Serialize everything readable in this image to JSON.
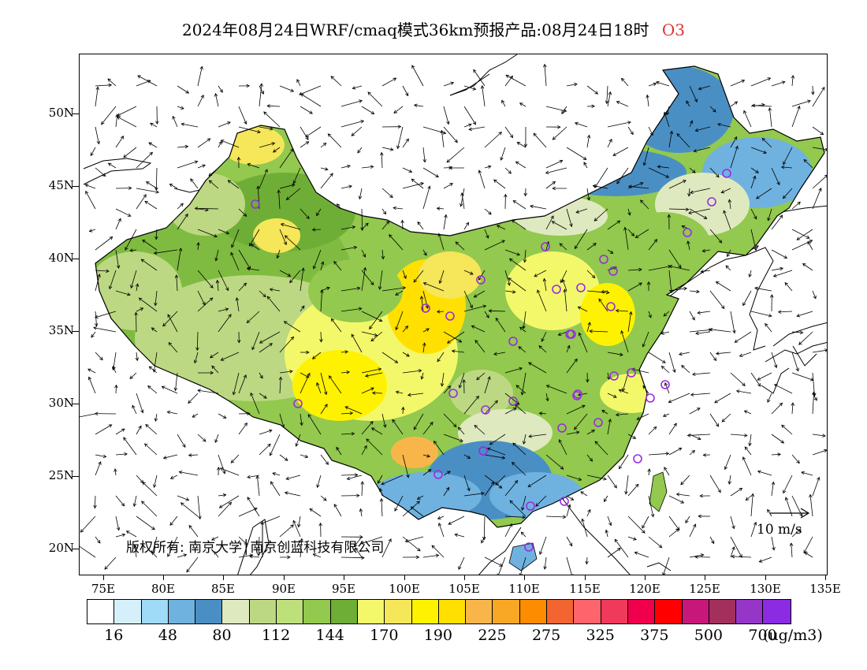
{
  "title": {
    "text": "2024年08月24日WRF/cmaq模式36km预报产品:08月24日18时",
    "pollutant": "O3",
    "pollutant_color": "#e03030"
  },
  "axes": {
    "lat_labels": [
      "50N",
      "45N",
      "40N",
      "35N",
      "30N",
      "25N",
      "20N"
    ],
    "lon_labels": [
      "75E",
      "80E",
      "85E",
      "90E",
      "95E",
      "100E",
      "105E",
      "110E",
      "115E",
      "120E",
      "125E",
      "130E",
      "135E"
    ]
  },
  "colorbar": {
    "colors": [
      "#ffffff",
      "#d6f0fb",
      "#9fdaf7",
      "#6fb2e0",
      "#4a8fc4",
      "#dfe9bf",
      "#bdd882",
      "#bde07a",
      "#92c94e",
      "#6fae36",
      "#f3f86a",
      "#f5e65a",
      "#fff200",
      "#ffe000",
      "#f8b64a",
      "#f9a825",
      "#fd8c00",
      "#f26531",
      "#fe646c",
      "#f03a5c",
      "#f0004c",
      "#ff0000",
      "#c8177b",
      "#a3305c",
      "#9636c9",
      "#8b2be2"
    ],
    "tick_labels": [
      "16",
      "48",
      "80",
      "112",
      "144",
      "170",
      "190",
      "225",
      "275",
      "325",
      "375",
      "500",
      "700"
    ],
    "units": "(ug/m3)"
  },
  "copyright": "版权所有: 南京大学│南京创蓝科技有限公司",
  "wind_reference": "10 m/s",
  "monitor_sites": 34
}
